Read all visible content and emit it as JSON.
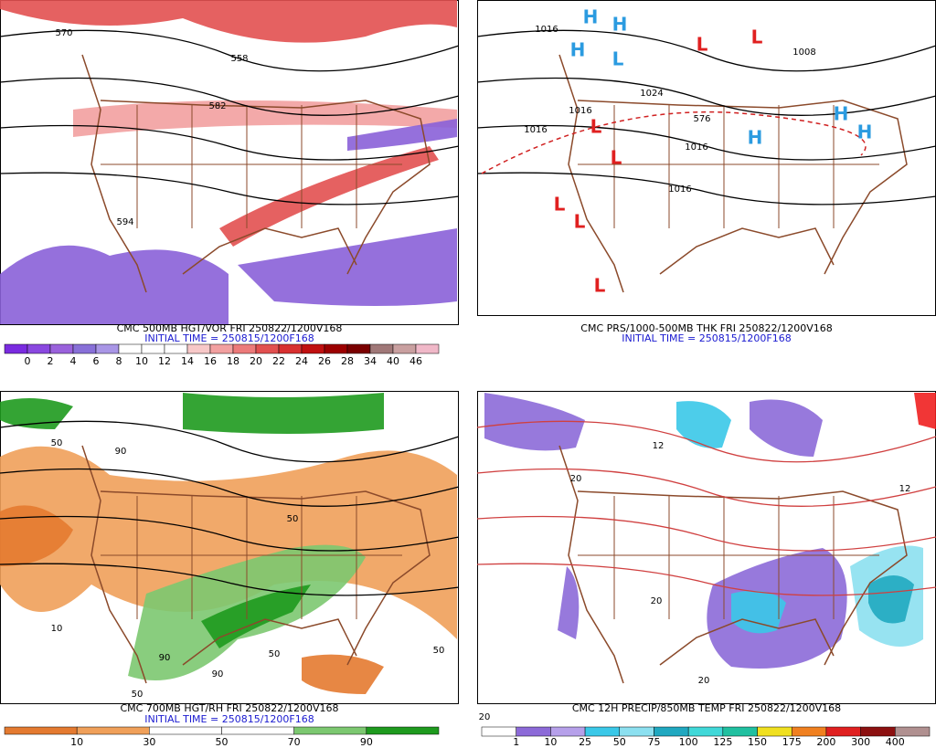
{
  "panels": [
    {
      "caption": "CMC 500MB HGT/VOR FRI 250822/1200V168",
      "initial_time": "INITIAL TIME = 250815/1200F168",
      "contour_labels": [
        "570",
        "558",
        "582",
        "594"
      ],
      "pressure_centers": [],
      "colorbar": {
        "labels": [
          "0",
          "2",
          "4",
          "6",
          "8",
          "10",
          "12",
          "14",
          "16",
          "18",
          "20",
          "22",
          "24",
          "26",
          "28",
          "34",
          "40",
          "46"
        ],
        "colors": [
          "#7a2be0",
          "#8a48e0",
          "#9a62dc",
          "#8870d8",
          "#a996e6",
          "#ffffff",
          "#ffffff",
          "#ffffff",
          "#f7c8c8",
          "#f2a0a0",
          "#ec7a7a",
          "#e25050",
          "#d83030",
          "#c01010",
          "#9c0000",
          "#7a0000",
          "#a07878",
          "#c9a0a0",
          "#f0b8c8"
        ]
      }
    },
    {
      "caption": "CMC PRS/1000-500MB THK FRI 250822/1200V168",
      "initial_time": "INITIAL TIME = 250815/1200F168",
      "contour_labels": [
        "1016",
        "1008",
        "1024",
        "1016",
        "1016",
        "1016",
        "576",
        "1016"
      ],
      "pressure_centers": [
        "H",
        "H",
        "H",
        "L",
        "L",
        "L",
        "L",
        "H",
        "H",
        "H",
        "L",
        "L",
        "L",
        "L"
      ],
      "colorbar": null
    },
    {
      "caption": "CMC 700MB HGT/RH FRI 250822/1200V168",
      "initial_time": "INITIAL TIME = 250815/1200F168",
      "contour_labels": [
        "50",
        "90",
        "10",
        "50",
        "90",
        "50",
        "50",
        "90",
        "50"
      ],
      "pressure_centers": [],
      "colorbar": {
        "labels": [
          "10",
          "30",
          "50",
          "70",
          "90"
        ],
        "colors": [
          "#e47a30",
          "#f0a05a",
          "#ffffff",
          "#ffffff",
          "#7cc870",
          "#1e9a1e"
        ]
      }
    },
    {
      "caption": "CMC 12H PRECIP/850MB TEMP FRI 250822/1200V168",
      "initial_time": null,
      "contour_labels": [
        "12",
        "20",
        "20",
        "12",
        "20",
        "20"
      ],
      "pressure_centers": [],
      "colorbar": {
        "labels": [
          "1",
          "10",
          "25",
          "50",
          "75",
          "100",
          "125",
          "150",
          "175",
          "200",
          "300",
          "400"
        ],
        "colors": [
          "#ffffff",
          "#8c6ad8",
          "#b6a0ea",
          "#3ac8e8",
          "#8ce0f0",
          "#20a8c0",
          "#40d8d8",
          "#20c0a0",
          "#f0e020",
          "#f08020",
          "#e02020",
          "#8c1010",
          "#b09090"
        ]
      }
    }
  ]
}
